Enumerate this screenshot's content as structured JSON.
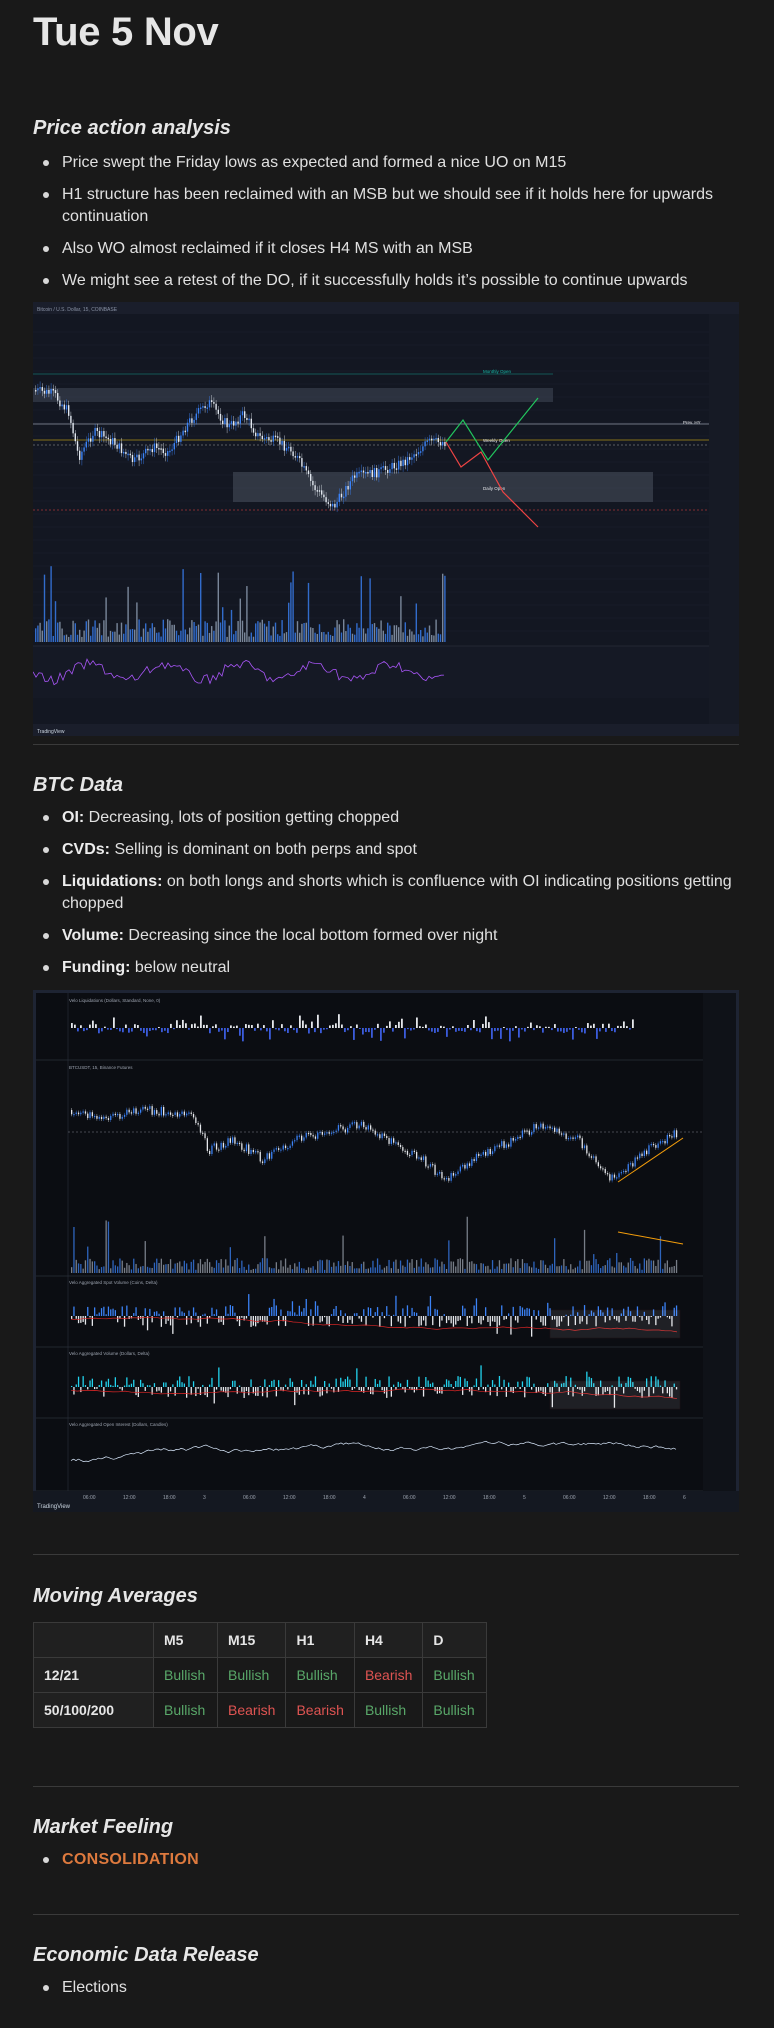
{
  "page_title": "Tue 5 Nov",
  "sections": {
    "price_action": {
      "title": "Price action analysis",
      "bullets": [
        "Price swept the Friday lows as expected and formed a nice UO on M15",
        "H1 structure has been reclaimed with an MSB but we should see if it holds here for upwards continuation",
        "Also WO almost reclaimed if it closes H4 MS with an MSB",
        "We might see a retest of the DO, if it successfully holds it’s possible to continue upwards"
      ]
    },
    "btc_data": {
      "title": "BTC Data",
      "items": [
        {
          "label": "OI:",
          "text": " Decreasing, lots of position getting chopped"
        },
        {
          "label": "CVDs:",
          "text": " Selling is dominant on both perps and spot"
        },
        {
          "label": "Liquidations:",
          "text": " on both longs and shorts which is confluence with OI indicating positions getting chopped"
        },
        {
          "label": "Volume:",
          "text": " Decreasing since the local bottom formed over night"
        },
        {
          "label": "Funding:",
          "text": " below neutral"
        }
      ]
    },
    "moving_averages": {
      "title": "Moving Averages",
      "columns": [
        "",
        "M5",
        "M15",
        "H1",
        "H4",
        "D"
      ],
      "rows": [
        {
          "label": "12/21",
          "cells": [
            "Bullish",
            "Bullish",
            "Bullish",
            "Bearish",
            "Bullish"
          ]
        },
        {
          "label": "50/100/200",
          "cells": [
            "Bullish",
            "Bearish",
            "Bearish",
            "Bullish",
            "Bullish"
          ]
        }
      ]
    },
    "market_feeling": {
      "title": "Market Feeling",
      "items": [
        "CONSOLIDATION"
      ]
    },
    "economic_data": {
      "title": "Economic Data Release",
      "items": [
        "Elections"
      ]
    }
  },
  "chart1": {
    "header": "Bitcoin / U.S. Dollar, 15, COINBASE",
    "tradingview_label": "TradingView",
    "level_labels": [
      "Monthly Open",
      "Weekly Open",
      "Daily Open",
      "Prev. HY"
    ],
    "colors": {
      "up": "#3b82f6",
      "down": "#e2e8f0",
      "green_arrow": "#22c55e",
      "red_arrow": "#ef4444",
      "level": "#facc15"
    }
  },
  "chart2": {
    "tradingview_label": "TradingView",
    "panel_labels": [
      "Velo Liquidations (Dollars, Standard, None, 0)",
      "BTCUSDT, 15, Binance Futures",
      "Velo Aggregated Spot Volume (Coins, Delta)",
      "Velo Aggregated Volume (Dollars, Delta)",
      "Velo Aggregated Open Interest (Dollars, Candles)"
    ],
    "x_ticks": [
      "06:00",
      "12:00",
      "18:00",
      "3",
      "06:00",
      "12:00",
      "18:00",
      "4",
      "06:00",
      "12:00",
      "18:00",
      "5",
      "06:00",
      "12:00",
      "18:00",
      "6"
    ]
  }
}
